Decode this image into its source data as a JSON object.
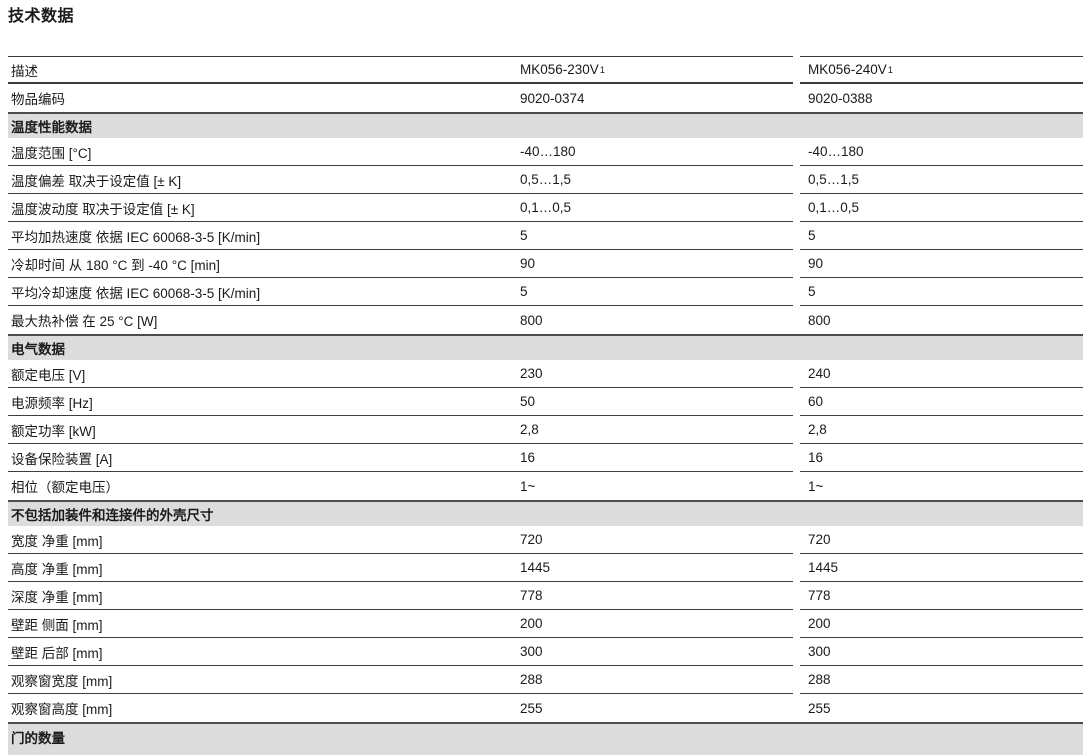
{
  "page": {
    "title": "技术数据"
  },
  "colors": {
    "section_band_bg": "#dcdcdc",
    "rule": "#3e3e3e",
    "text": "#1a1a1a"
  },
  "table": {
    "rows": [
      {
        "type": "header",
        "label": "描述",
        "v1": "MK056-230V",
        "v1_sup": "1",
        "v2": "MK056-240V",
        "v2_sup": "1"
      },
      {
        "type": "item",
        "label": "物品编码",
        "v1": "9020-0374",
        "v2": "9020-0388"
      },
      {
        "type": "section",
        "label": "温度性能数据"
      },
      {
        "type": "item",
        "label": "温度范围 [°C]",
        "v1": "-40…180",
        "v2": "-40…180"
      },
      {
        "type": "item",
        "label": "温度偏差 取决于设定值 [± K]",
        "v1": "0,5…1,5",
        "v2": "0,5…1,5"
      },
      {
        "type": "item",
        "label": "温度波动度 取决于设定值 [± K]",
        "v1": "0,1…0,5",
        "v2": "0,1…0,5"
      },
      {
        "type": "item",
        "label": "平均加热速度 依据 IEC 60068-3-5 [K/min]",
        "v1": "5",
        "v2": "5"
      },
      {
        "type": "item",
        "label": "冷却时间 从 180 °C 到 -40 °C [min]",
        "v1": "90",
        "v2": "90"
      },
      {
        "type": "item",
        "label": "平均冷却速度 依据 IEC 60068-3-5 [K/min]",
        "v1": "5",
        "v2": "5"
      },
      {
        "type": "item",
        "label": "最大热补偿 在 25 °C [W]",
        "v1": "800",
        "v2": "800"
      },
      {
        "type": "section",
        "label": "电气数据"
      },
      {
        "type": "item",
        "label": "额定电压 [V]",
        "v1": "230",
        "v2": "240"
      },
      {
        "type": "item",
        "label": "电源频率 [Hz]",
        "v1": "50",
        "v2": "60"
      },
      {
        "type": "item",
        "label": "额定功率 [kW]",
        "v1": "2,8",
        "v2": "2,8"
      },
      {
        "type": "item",
        "label": "设备保险装置 [A]",
        "v1": "16",
        "v2": "16"
      },
      {
        "type": "item",
        "label": "相位（额定电压）",
        "v1": "1~",
        "v2": "1~"
      },
      {
        "type": "section",
        "label": "不包括加装件和连接件的外壳尺寸"
      },
      {
        "type": "item",
        "label": "宽度 净重 [mm]",
        "v1": "720",
        "v2": "720"
      },
      {
        "type": "item",
        "label": "高度 净重 [mm]",
        "v1": "1445",
        "v2": "1445"
      },
      {
        "type": "item",
        "label": "深度 净重 [mm]",
        "v1": "778",
        "v2": "778"
      },
      {
        "type": "item",
        "label": "壁距 侧面 [mm]",
        "v1": "200",
        "v2": "200"
      },
      {
        "type": "item",
        "label": "壁距 后部 [mm]",
        "v1": "300",
        "v2": "300"
      },
      {
        "type": "item",
        "label": "观察窗宽度 [mm]",
        "v1": "288",
        "v2": "288"
      },
      {
        "type": "item",
        "label": "观察窗高度 [mm]",
        "v1": "255",
        "v2": "255"
      },
      {
        "type": "section",
        "label": "门的数量"
      }
    ]
  }
}
